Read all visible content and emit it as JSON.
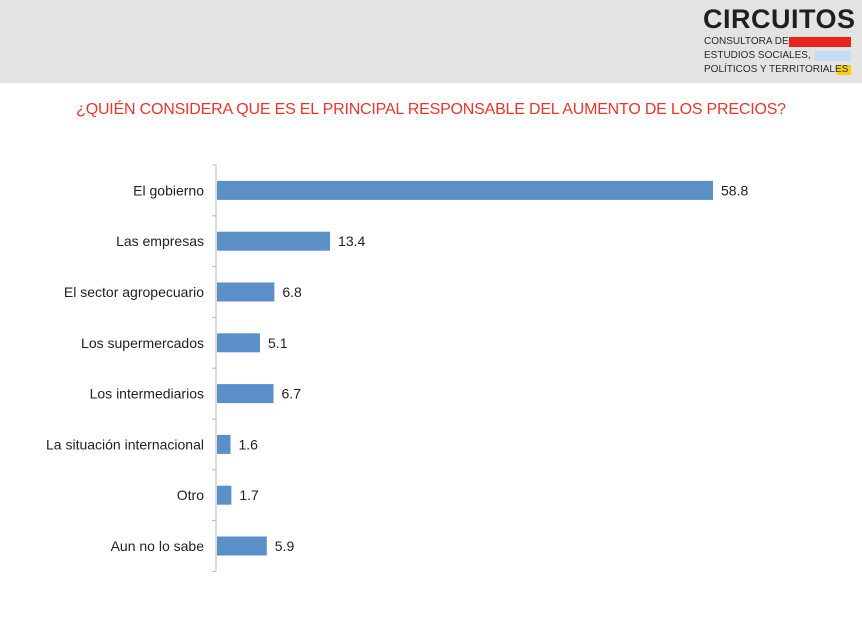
{
  "logo": {
    "name": "CIRCUITOS",
    "line1": "CONSULTORA DE",
    "line2": "ESTUDIOS SOCIALES,",
    "line3": "POLÍTICOS Y TERRITORIALES",
    "colors": [
      "#e8231d",
      "#c2dcf2",
      "#f6cf10"
    ]
  },
  "colors": {
    "bar": "#5b8fc7",
    "title": "#e8362a",
    "header_band": "#e3e3e3"
  },
  "chart_data": {
    "type": "bar",
    "orientation": "horizontal",
    "title": "¿QUIÉN CONSIDERA QUE ES EL PRINCIPAL RESPONSABLE DEL AUMENTO DE LOS PRECIOS?",
    "categories": [
      "El gobierno",
      "Las empresas",
      "El sector agropecuario",
      "Los supermercados",
      "Los intermediarios",
      "La situación internacional",
      "Otro",
      "Aun no lo sabe"
    ],
    "values": [
      58.8,
      13.4,
      6.8,
      5.1,
      6.7,
      1.6,
      1.7,
      5.9
    ],
    "value_labels": [
      "58.8",
      "13.4",
      "6.8",
      "5.1",
      "6.7",
      "1.6",
      "1.7",
      "5.9"
    ],
    "xlim": [
      0,
      62
    ],
    "grid": false,
    "legend": "none"
  }
}
